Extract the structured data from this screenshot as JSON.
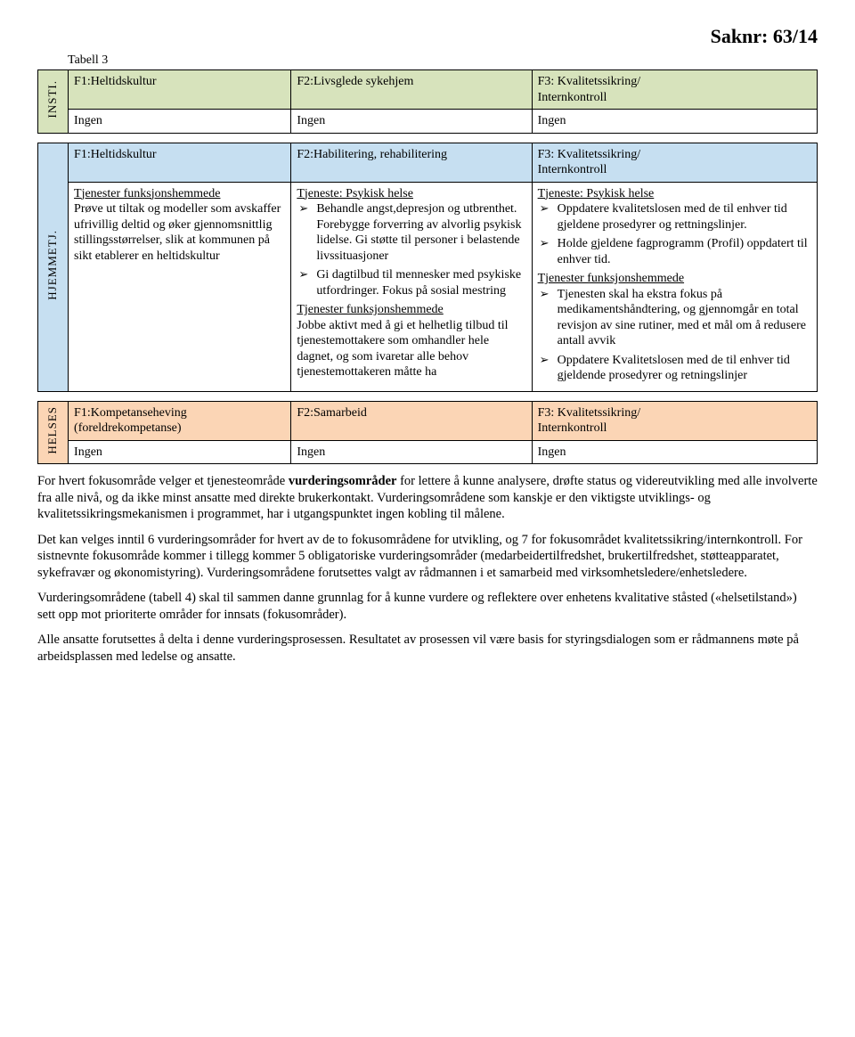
{
  "header": {
    "saknr": "Saknr: 63/14",
    "tabell": "Tabell 3"
  },
  "sidebar": {
    "insti": "INSTI.",
    "hjemmetj": "HJEMMETJ.",
    "helses": "HELSES"
  },
  "t1": {
    "h1": "F1:Heltidskultur",
    "h2": "F2:Livsglede sykehjem",
    "h3a": "F3: Kvalitetssikring/",
    "h3b": "Internkontroll",
    "r1": "Ingen",
    "r2": "Ingen",
    "r3": "Ingen"
  },
  "t2": {
    "h1": "F1:Heltidskultur",
    "h2": "F2:Habilitering, rehabilitering",
    "h3a": "F3: Kvalitetssikring/",
    "h3b": "Internkontroll",
    "c1_u": "Tjenester funksjonshemmede",
    "c1_body": "Prøve ut tiltak og modeller som avskaffer ufrivillig deltid og øker gjennomsnittlig stillingsstørrelser, slik at kommunen på sikt etablerer en heltidskultur",
    "c2_u": "Tjeneste: Psykisk helse",
    "c2_b1": "Behandle angst,depresjon og utbrenthet. Forebygge forverring av alvorlig psykisk lidelse. Gi støtte til personer i belastende livssituasjoner",
    "c2_b2": "Gi dagtilbud til mennesker med psykiske utfordringer. Fokus på sosial mestring",
    "c2_u2": "Tjenester funksjonshemmede",
    "c2_body2": "Jobbe aktivt med å gi et helhetlig tilbud til tjenestemottakere som omhandler hele dagnet, og som ivaretar alle behov tjenestemottakeren måtte ha",
    "c3_u": "Tjeneste: Psykisk helse",
    "c3_b1": "Oppdatere kvalitetslosen med de til enhver tid gjeldene prosedyrer og rettningslinjer.",
    "c3_b2": "Holde gjeldene fagprogramm (Profil) oppdatert til enhver tid.",
    "c3_u2": "Tjenester funksjonshemmede",
    "c3_b3": "Tjenesten skal ha ekstra fokus på medikamentshåndtering, og gjennomgår en total revisjon av sine rutiner, med et mål om å redusere antall avvik",
    "c3_b4": "Oppdatere Kvalitetslosen med de til enhver tid gjeldende prosedyrer og retningslinjer"
  },
  "t3": {
    "h1a": "F1:Kompetanseheving",
    "h1b": "(foreldrekompetanse)",
    "h2": "F2:Samarbeid",
    "h3a": "F3: Kvalitetssikring/",
    "h3b": "Internkontroll",
    "r1": "Ingen",
    "r2": "Ingen",
    "r3": "Ingen"
  },
  "body": {
    "p1a": "For hvert fokusområde velger et tjenesteområde ",
    "p1bold": "vurderingsområder",
    "p1b": " for lettere å kunne analysere, drøfte status og videreutvikling med alle involverte fra alle nivå, og da ikke minst ansatte med direkte brukerkontakt. Vurderingsområdene som kanskje er den viktigste utviklings- og kvalitetssikringsmekanismen i programmet, har i utgangspunktet ingen kobling til målene.",
    "p2": "Det kan velges inntil 6 vurderingsområder for hvert av de to fokusområdene for utvikling, og 7 for fokusområdet kvalitetssikring/internkontroll. For sistnevnte fokusområde kommer i tillegg kommer 5 obligatoriske vurderingsområder (medarbeidertilfredshet, brukertilfredshet, støtteapparatet, sykefravær og økonomistyring). Vurderingsområdene forutsettes valgt av rådmannen i et samarbeid med virksomhetsledere/enhetsledere.",
    "p3": "Vurderingsområdene (tabell 4) skal til sammen danne grunnlag for å kunne vurdere og reflektere over enhetens kvalitative ståsted  («helsetilstand») sett opp mot prioriterte områder for innsats (fokusområder).",
    "p4": "Alle ansatte forutsettes å delta i denne vurderingsprosessen. Resultatet av prosessen vil være basis for styringsdialogen som er rådmannens møte på arbeidsplassen med ledelse og ansatte."
  }
}
